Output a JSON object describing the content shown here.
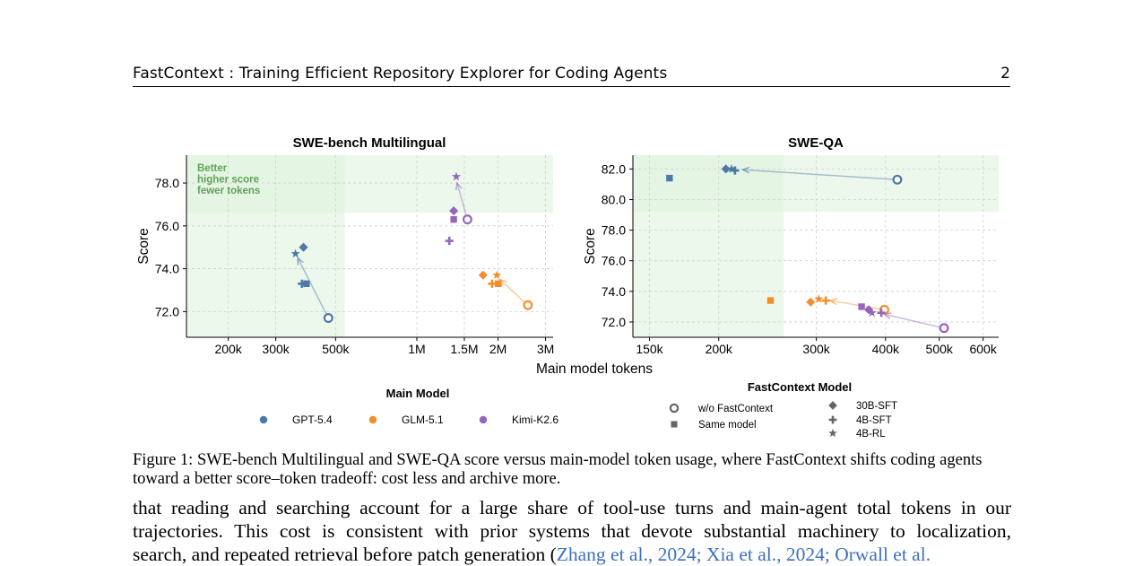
{
  "header": {
    "title": "FastContext : Training Efficient Repository Explorer for Coding Agents",
    "page_number": "2"
  },
  "figure": {
    "xlabel_shared": "Main model tokens",
    "annotation": [
      "Better",
      "higher score",
      "fewer tokens"
    ],
    "legend_main_title": "Main Model",
    "legend_main": [
      {
        "label": "GPT-5.4",
        "color": "#4e79a7"
      },
      {
        "label": "GLM-5.1",
        "color": "#f28e2b"
      },
      {
        "label": "Kimi-K2.6",
        "color": "#9467bd"
      }
    ],
    "legend_fc_title": "FastContext Model",
    "legend_fc": [
      {
        "label": "w/o FastContext",
        "icon": "open-circle-icon"
      },
      {
        "label": "Same model",
        "icon": "square-icon"
      },
      {
        "label": "30B-SFT",
        "icon": "diamond-icon"
      },
      {
        "label": "4B-SFT",
        "icon": "plus-icon"
      },
      {
        "label": "4B-RL",
        "icon": "star-icon"
      }
    ]
  },
  "chart_data": [
    {
      "type": "scatter",
      "title": "SWE-bench Multilingual",
      "ylabel": "Score",
      "xscale": "log",
      "xlim": [
        140000,
        3200000
      ],
      "ylim": [
        70.8,
        79.3
      ],
      "xticks": [
        {
          "v": 200000,
          "label": "200k"
        },
        {
          "v": 300000,
          "label": "300k"
        },
        {
          "v": 500000,
          "label": "500k"
        },
        {
          "v": 1000000,
          "label": "1M"
        },
        {
          "v": 1500000,
          "label": "1.5M"
        },
        {
          "v": 2000000,
          "label": "2M"
        },
        {
          "v": 3000000,
          "label": "3M"
        }
      ],
      "yticks": [
        72.0,
        74.0,
        76.0,
        78.0
      ],
      "better_region": {
        "x_max": 540000,
        "y_min": 76.6
      },
      "grid": true,
      "series": [
        {
          "model": "GPT-5.4",
          "color": "#4e79a7",
          "points": [
            {
              "marker": "circle",
              "x": 470000,
              "y": 71.7
            },
            {
              "marker": "square",
              "x": 390000,
              "y": 73.3
            },
            {
              "marker": "diamond",
              "x": 380000,
              "y": 75.0
            },
            {
              "marker": "plus",
              "x": 375000,
              "y": 73.3
            },
            {
              "marker": "star",
              "x": 355000,
              "y": 74.7
            }
          ]
        },
        {
          "model": "GLM-5.1",
          "color": "#f28e2b",
          "points": [
            {
              "marker": "circle",
              "x": 2580000,
              "y": 72.3
            },
            {
              "marker": "square",
              "x": 2000000,
              "y": 73.3
            },
            {
              "marker": "diamond",
              "x": 1760000,
              "y": 73.7
            },
            {
              "marker": "plus",
              "x": 1900000,
              "y": 73.3
            },
            {
              "marker": "star",
              "x": 1980000,
              "y": 73.7
            }
          ]
        },
        {
          "model": "Kimi-K2.6",
          "color": "#9467bd",
          "points": [
            {
              "marker": "circle",
              "x": 1540000,
              "y": 76.3
            },
            {
              "marker": "square",
              "x": 1370000,
              "y": 76.3
            },
            {
              "marker": "diamond",
              "x": 1370000,
              "y": 76.7
            },
            {
              "marker": "plus",
              "x": 1320000,
              "y": 75.3
            },
            {
              "marker": "star",
              "x": 1400000,
              "y": 78.3
            }
          ]
        }
      ],
      "arrows": [
        {
          "from": [
            470000,
            71.7
          ],
          "to": [
            362000,
            74.5
          ],
          "color": "#4e79a7"
        },
        {
          "from": [
            2580000,
            72.3
          ],
          "to": [
            2030000,
            73.5
          ],
          "color": "#f28e2b"
        },
        {
          "from": [
            1540000,
            76.3
          ],
          "to": [
            1410000,
            78.0
          ],
          "color": "#9467bd"
        }
      ]
    },
    {
      "type": "scatter",
      "title": "SWE-QA",
      "ylabel": "Score",
      "xscale": "log",
      "xlim": [
        140000,
        640000
      ],
      "ylim": [
        71.0,
        82.9
      ],
      "xticks": [
        {
          "v": 150000,
          "label": "150k"
        },
        {
          "v": 200000,
          "label": "200k"
        },
        {
          "v": 300000,
          "label": "300k"
        },
        {
          "v": 400000,
          "label": "400k"
        },
        {
          "v": 500000,
          "label": "500k"
        },
        {
          "v": 600000,
          "label": "600k"
        }
      ],
      "yticks": [
        72.0,
        74.0,
        76.0,
        78.0,
        80.0,
        82.0
      ],
      "better_region": {
        "x_max": 262000,
        "y_min": 79.2
      },
      "grid": true,
      "series": [
        {
          "model": "GPT-5.4",
          "color": "#4e79a7",
          "points": [
            {
              "marker": "circle",
              "x": 420000,
              "y": 81.3
            },
            {
              "marker": "square",
              "x": 163000,
              "y": 81.4
            },
            {
              "marker": "diamond",
              "x": 206000,
              "y": 82.0
            },
            {
              "marker": "plus",
              "x": 214000,
              "y": 81.9
            },
            {
              "marker": "star",
              "x": 211000,
              "y": 82.0
            }
          ]
        },
        {
          "model": "GLM-5.1",
          "color": "#f28e2b",
          "points": [
            {
              "marker": "circle",
              "x": 398000,
              "y": 72.8
            },
            {
              "marker": "square",
              "x": 248000,
              "y": 73.4
            },
            {
              "marker": "diamond",
              "x": 293000,
              "y": 73.3
            },
            {
              "marker": "plus",
              "x": 312000,
              "y": 73.4
            },
            {
              "marker": "star",
              "x": 303000,
              "y": 73.5
            }
          ]
        },
        {
          "model": "Kimi-K2.6",
          "color": "#9467bd",
          "points": [
            {
              "marker": "circle",
              "x": 510000,
              "y": 71.6
            },
            {
              "marker": "square",
              "x": 362000,
              "y": 73.0
            },
            {
              "marker": "diamond",
              "x": 373000,
              "y": 72.8
            },
            {
              "marker": "plus",
              "x": 393000,
              "y": 72.6
            },
            {
              "marker": "star",
              "x": 378000,
              "y": 72.6
            }
          ]
        }
      ],
      "arrows": [
        {
          "from": [
            420000,
            81.3
          ],
          "to": [
            221000,
            81.95
          ],
          "color": "#4e79a7"
        },
        {
          "from": [
            398000,
            72.8
          ],
          "to": [
            318000,
            73.4
          ],
          "color": "#f28e2b"
        },
        {
          "from": [
            510000,
            71.6
          ],
          "to": [
            398000,
            72.5
          ],
          "color": "#9467bd"
        }
      ]
    }
  ],
  "caption": "Figure 1: SWE-bench Multilingual and SWE-QA score versus main-model token usage, where FastContext shifts coding agents toward a better score–token tradeoff: cost less and archive more.",
  "body": {
    "line1": "that reading and searching account for a large share of tool-use turns and main-agent total tokens in our",
    "line2": "trajectories.  This cost is consistent with prior systems that devote substantial machinery to localization,",
    "line3_pre": "search, and repeated retrieval before patch generation (",
    "line3_cite": "Zhang et al., 2024; Xia et al., 2024; Orwall et al."
  }
}
